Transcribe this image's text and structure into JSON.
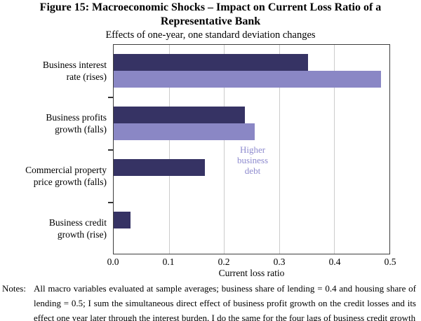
{
  "figure": {
    "title_line1": "Figure 15: Macroeconomic Shocks – Impact on Current Loss Ratio of a",
    "title_line2": "Representative Bank",
    "subtitle": "Effects of one-year, one standard deviation changes"
  },
  "chart_data": {
    "type": "bar",
    "orientation": "horizontal",
    "title": "Figure 15: Macroeconomic Shocks – Impact on Current Loss Ratio of a Representative Bank",
    "subtitle": "Effects of one-year, one standard deviation changes",
    "xlabel": "Current loss ratio",
    "xlim": [
      0,
      0.5
    ],
    "xticks": [
      "0.0",
      "0.1",
      "0.2",
      "0.3",
      "0.4",
      "0.5"
    ],
    "grid": true,
    "legend_position": "none (second series labeled by in-plot annotation)",
    "categories": [
      "Business interest\nrate (rises)",
      "Business profits\ngrowth (falls)",
      "Commercial property\nprice growth (falls)",
      "Business credit\ngrowth (rise)"
    ],
    "series": [
      {
        "name": "",
        "color": "#363364",
        "values": [
          0.353,
          0.238,
          0.166,
          0.031
        ]
      },
      {
        "name": "Higher business debt",
        "color": "#8a87c5",
        "values": [
          0.485,
          0.256,
          null,
          null
        ]
      }
    ],
    "annotation": {
      "text": "Higher\nbusiness\ndebt",
      "color": "#8d8ace"
    },
    "frame_color": "#3e3e3e",
    "gridline_color": "#cbcbcb"
  },
  "notes": {
    "label": "Notes:",
    "lines": [
      "All macro variables evaluated at sample averages; business share of lending = 0.4 and housing share of",
      "lending = 0.5; I sum the simultaneous direct effect of business profit growth on the credit losses and its",
      "effect one year later through the interest burden, I do the same for the four lags of business credit growth"
    ],
    "text": "All macro variables evaluated at sample averages; business share of lending = 0.4 and housing share of lending = 0.5; I sum the simultaneous direct effect of business profit growth on the credit losses and its effect one year later through the interest burden, I do the same for the four lags of business credit growth"
  }
}
